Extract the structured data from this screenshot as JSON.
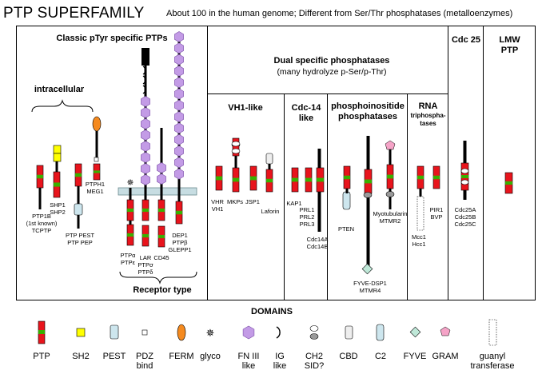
{
  "title": "PTP SUPERFAMILY",
  "subtitle": "About 100 in the human genome; Different from Ser/Thr phosphatases (metalloenzymes)",
  "sections": {
    "classic": "Classic pTyr specific PTPs",
    "intracellular": "intracellular",
    "receptor": "Receptor type",
    "dual_line1": "Dual specific phosphatases",
    "dual_line2": "(many hydrolyze p-Ser/p-Thr)",
    "vh1": "VH1-like",
    "cdc14_line1": "Cdc-14",
    "cdc14_line2": "like",
    "phosphoinositide_line1": "phosphoinositide",
    "phosphoinositide_line2": "phosphatases",
    "rna_line1": "RNA",
    "rna_line2": "triphospha-",
    "rna_line3": "tases",
    "cdc25": "Cdc 25",
    "lmw_line1": "LMW",
    "lmw_line2": "PTP"
  },
  "proteins": {
    "ptp1b_1": "PTP1B",
    "ptp1b_2": "(1st known)",
    "ptp1b_3": "TCPTP",
    "shp_1": "SHP1",
    "shp_2": "SHP2",
    "ptp_pest_1": "PTP  PEST",
    "ptp_pest_2": "PTP  PEP",
    "ptph1_1": "PTPH1",
    "ptph1_2": "MEG1",
    "ptpa_1": "PTPα",
    "ptpa_2": "PTPε",
    "lar_1": "LAR",
    "lar_2": "PTPσ",
    "lar_3": "PTPδ",
    "cd45": "CD45",
    "dep1_1": "DEP1",
    "dep1_2": "PTPβ",
    "dep1_3": "GLEPP1",
    "vhr_1": "VHR",
    "vhr_2": "VH1",
    "mkps": "MKPs",
    "jsp1": "JSP1",
    "laforin": "Laforin",
    "kap1": "KAP1",
    "prl_1": "PRL1",
    "prl_2": "PRL2",
    "prl_3": "PRL3",
    "cdc14_1": "Cdc14A",
    "cdc14_2": "Cdc14B",
    "pten": "PTEN",
    "myotub_1": "Myotubularin",
    "myotub_2": "MTMR2",
    "fyve_1": "FYVE-DSP1",
    "fyve_2": "MTMR4",
    "mcc_1": "Mcc1",
    "mcc_2": "Hcc1",
    "pir_1": "PIR1",
    "pir_2": "BVP",
    "cdc25_1": "Cdc25A",
    "cdc25_2": "Cdc25B",
    "cdc25_3": "Cdc25C"
  },
  "domains": {
    "heading": "DOMAINS",
    "items": [
      "PTP",
      "SH2",
      "PEST",
      "PDZ\nbind",
      "FERM",
      "glyco",
      "FN III\nlike",
      "IG\nlike",
      "CH2\nSID?",
      "CBD",
      "C2",
      "FYVE",
      "GRAM",
      "guanyl\ntransferase"
    ]
  },
  "colors": {
    "ptp_red": "#e8141c",
    "ptp_green": "#38b000",
    "sh2_yellow": "#ffff00",
    "pest_blue": "#cde6ee",
    "ferm_orange": "#f58a1f",
    "fn3_purple": "#c39be6",
    "membrane": "#c7dde2",
    "gram_pink": "#f5a3c7"
  }
}
